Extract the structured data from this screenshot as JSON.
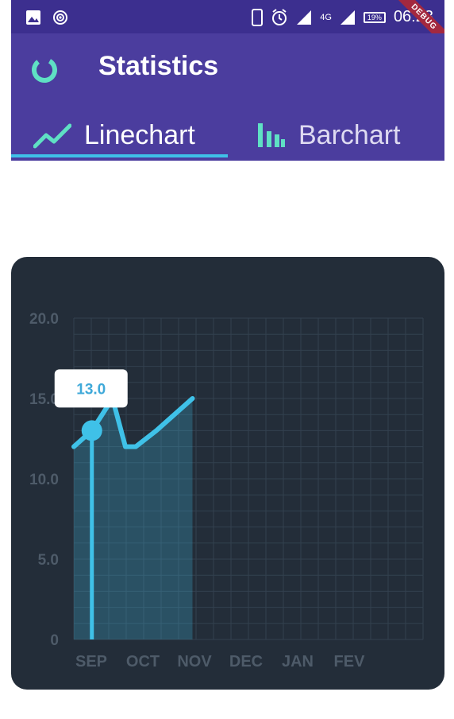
{
  "status_bar": {
    "time": "06:23",
    "network": "4G",
    "battery": "19%",
    "debug_label": "DEBUG"
  },
  "app_bar": {
    "title": "Statistics"
  },
  "tabs": [
    {
      "label": "Linechart",
      "icon": "line-chart-icon",
      "selected": true
    },
    {
      "label": "Barchart",
      "icon": "bar-chart-icon",
      "selected": false
    }
  ],
  "colors": {
    "status_bar": "#3c2f8f",
    "app_bar": "#4b3d9e",
    "accent": "#3fc1e8",
    "icon_teal": "#5fe0c4",
    "card_bg": "#232d39"
  },
  "chart_data": {
    "type": "line",
    "categories": [
      "SEP",
      "OCT",
      "NOV",
      "DEC",
      "JAN",
      "FEV"
    ],
    "ylim": [
      0,
      20
    ],
    "y_ticks": [
      "0",
      "5.0",
      "10.0",
      "15.0",
      "20.0"
    ],
    "x": [
      0.0,
      0.35,
      0.55,
      0.75,
      1.0,
      1.2,
      1.6,
      2.3
    ],
    "y": [
      12.0,
      13.0,
      14.0,
      15.0,
      12.0,
      12.0,
      13.0,
      15.0
    ],
    "grid": true,
    "tooltip": {
      "label": "13.0",
      "x": 0.35,
      "y": 13.0
    }
  }
}
